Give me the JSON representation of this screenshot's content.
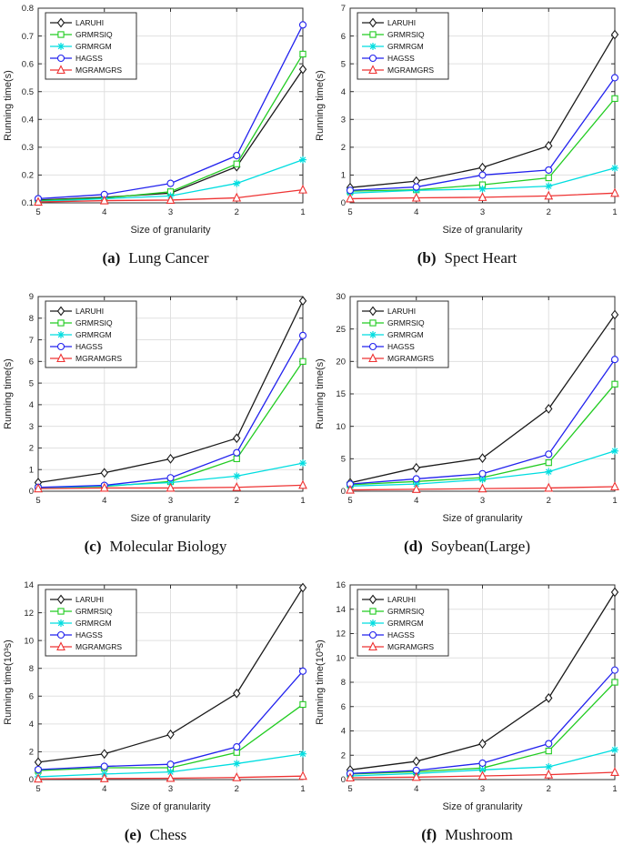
{
  "figure": {
    "legend": [
      {
        "name": "LARUHI",
        "color": "#1a1a1a",
        "marker": "diamond",
        "marker_icon": "diamond-marker-icon"
      },
      {
        "name": "GRMRSIQ",
        "color": "#22cc22",
        "marker": "square",
        "marker_icon": "square-marker-icon"
      },
      {
        "name": "GRMRGM",
        "color": "#00dde0",
        "marker": "asterisk",
        "marker_icon": "asterisk-marker-icon"
      },
      {
        "name": "HAGSS",
        "color": "#2222ee",
        "marker": "circle",
        "marker_icon": "circle-marker-icon"
      },
      {
        "name": "MGRAMGRS",
        "color": "#ee3333",
        "marker": "triangle",
        "marker_icon": "triangle-marker-icon"
      }
    ],
    "grid_color": "#e0e0e0",
    "axis_color": "#303030",
    "legend_position": "top-left",
    "grid": "on"
  },
  "chart_data": [
    {
      "id": "a",
      "type": "line",
      "caption_label": "(a)",
      "caption_title": "Lung Cancer",
      "xlabel": "Size of granularity",
      "ylabel": "Running time(s)",
      "categories": [
        "5",
        "4",
        "3",
        "2",
        "1"
      ],
      "ylim": [
        0.1,
        0.8
      ],
      "ytick_step": 0.1,
      "ytick_decimals": 1,
      "series": [
        {
          "name": "LARUHI",
          "values": [
            0.11,
            0.12,
            0.135,
            0.23,
            0.58
          ]
        },
        {
          "name": "GRMRSIQ",
          "values": [
            0.108,
            0.117,
            0.14,
            0.24,
            0.635
          ]
        },
        {
          "name": "GRMRGM",
          "values": [
            0.105,
            0.115,
            0.125,
            0.17,
            0.255
          ]
        },
        {
          "name": "HAGSS",
          "values": [
            0.115,
            0.13,
            0.17,
            0.27,
            0.74
          ]
        },
        {
          "name": "MGRAMGRS",
          "values": [
            0.103,
            0.108,
            0.11,
            0.118,
            0.147
          ]
        }
      ]
    },
    {
      "id": "b",
      "type": "line",
      "caption_label": "(b)",
      "caption_title": "Spect Heart",
      "xlabel": "Size of granularity",
      "ylabel": "Running time(s)",
      "categories": [
        "5",
        "4",
        "3",
        "2",
        "1"
      ],
      "ylim": [
        0,
        7
      ],
      "ytick_step": 1,
      "ytick_decimals": 0,
      "series": [
        {
          "name": "LARUHI",
          "values": [
            0.55,
            0.78,
            1.27,
            2.05,
            6.05
          ]
        },
        {
          "name": "GRMRSIQ",
          "values": [
            0.42,
            0.47,
            0.65,
            0.9,
            3.75
          ]
        },
        {
          "name": "GRMRGM",
          "values": [
            0.35,
            0.45,
            0.5,
            0.6,
            1.25
          ]
        },
        {
          "name": "HAGSS",
          "values": [
            0.45,
            0.57,
            1.0,
            1.18,
            4.5
          ]
        },
        {
          "name": "MGRAMGRS",
          "values": [
            0.15,
            0.18,
            0.2,
            0.25,
            0.35
          ]
        }
      ]
    },
    {
      "id": "c",
      "type": "line",
      "caption_label": "(c)",
      "caption_title": "Molecular Biology",
      "xlabel": "Size of granularity",
      "ylabel": "Running time(s)",
      "categories": [
        "5",
        "4",
        "3",
        "2",
        "1"
      ],
      "ylim": [
        0,
        9
      ],
      "ytick_step": 1,
      "ytick_decimals": 0,
      "series": [
        {
          "name": "LARUHI",
          "values": [
            0.4,
            0.85,
            1.5,
            2.45,
            8.8
          ]
        },
        {
          "name": "GRMRSIQ",
          "values": [
            0.15,
            0.22,
            0.45,
            1.5,
            6.0
          ]
        },
        {
          "name": "GRMRGM",
          "values": [
            0.15,
            0.25,
            0.4,
            0.7,
            1.3
          ]
        },
        {
          "name": "HAGSS",
          "values": [
            0.18,
            0.27,
            0.62,
            1.78,
            7.2
          ]
        },
        {
          "name": "MGRAMGRS",
          "values": [
            0.12,
            0.15,
            0.15,
            0.18,
            0.28
          ]
        }
      ]
    },
    {
      "id": "d",
      "type": "line",
      "caption_label": "(d)",
      "caption_title": "Soybean(Large)",
      "xlabel": "Size of granularity",
      "ylabel": "Running time(s)",
      "categories": [
        "5",
        "4",
        "3",
        "2",
        "1"
      ],
      "ylim": [
        0,
        30
      ],
      "ytick_step": 5,
      "ytick_decimals": 0,
      "series": [
        {
          "name": "LARUHI",
          "values": [
            1.3,
            3.6,
            5.1,
            12.7,
            27.2
          ]
        },
        {
          "name": "GRMRSIQ",
          "values": [
            1.0,
            1.5,
            2.1,
            4.4,
            16.5
          ]
        },
        {
          "name": "GRMRGM",
          "values": [
            0.8,
            1.1,
            1.8,
            3.0,
            6.2
          ]
        },
        {
          "name": "HAGSS",
          "values": [
            1.1,
            1.9,
            2.7,
            5.7,
            20.3
          ]
        },
        {
          "name": "MGRAMGRS",
          "values": [
            0.2,
            0.3,
            0.4,
            0.5,
            0.7
          ]
        }
      ]
    },
    {
      "id": "e",
      "type": "line",
      "caption_label": "(e)",
      "caption_title": "Chess",
      "xlabel": "Size of granularity",
      "ylabel": "Running time(10³s)",
      "categories": [
        "5",
        "4",
        "3",
        "2",
        "1"
      ],
      "ylim": [
        0,
        14
      ],
      "ytick_step": 2,
      "ytick_decimals": 0,
      "series": [
        {
          "name": "LARUHI",
          "values": [
            1.25,
            1.85,
            3.25,
            6.2,
            13.8
          ]
        },
        {
          "name": "GRMRSIQ",
          "values": [
            0.65,
            0.85,
            0.85,
            1.95,
            5.4
          ]
        },
        {
          "name": "GRMRGM",
          "values": [
            0.2,
            0.4,
            0.55,
            1.15,
            1.85
          ]
        },
        {
          "name": "HAGSS",
          "values": [
            0.72,
            0.95,
            1.1,
            2.35,
            7.8
          ]
        },
        {
          "name": "MGRAMGRS",
          "values": [
            0.05,
            0.08,
            0.1,
            0.15,
            0.25
          ]
        }
      ]
    },
    {
      "id": "f",
      "type": "line",
      "caption_label": "(f)",
      "caption_title": "Mushroom",
      "xlabel": "Size of granularity",
      "ylabel": "Running time(10³s)",
      "categories": [
        "5",
        "4",
        "3",
        "2",
        "1"
      ],
      "ylim": [
        0,
        16
      ],
      "ytick_step": 2,
      "ytick_decimals": 0,
      "series": [
        {
          "name": "LARUHI",
          "values": [
            0.8,
            1.5,
            2.95,
            6.7,
            15.4
          ]
        },
        {
          "name": "GRMRSIQ",
          "values": [
            0.45,
            0.65,
            0.95,
            2.35,
            8.0
          ]
        },
        {
          "name": "GRMRGM",
          "values": [
            0.3,
            0.5,
            0.8,
            1.05,
            2.45
          ]
        },
        {
          "name": "HAGSS",
          "values": [
            0.5,
            0.75,
            1.35,
            2.95,
            9.0
          ]
        },
        {
          "name": "MGRAMGRS",
          "values": [
            0.15,
            0.2,
            0.3,
            0.4,
            0.6
          ]
        }
      ]
    }
  ]
}
